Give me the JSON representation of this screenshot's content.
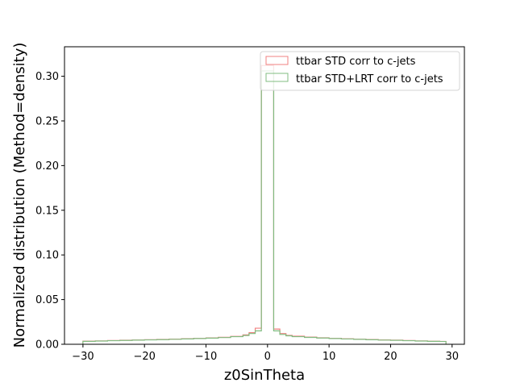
{
  "chart_data": {
    "type": "step-histogram",
    "title": "",
    "xlabel": "z0SinTheta",
    "ylabel": "Normalized distribution (Method=density)",
    "xlim": [
      -33.0,
      32.0
    ],
    "ylim": [
      0.0,
      0.333
    ],
    "xticks": [
      -30,
      -20,
      -10,
      0,
      10,
      20,
      30
    ],
    "yticks": [
      0.0,
      0.05,
      0.1,
      0.15,
      0.2,
      0.25,
      0.3
    ],
    "xtick_labels": [
      "−30",
      "−20",
      "−10",
      "0",
      "10",
      "20",
      "30"
    ],
    "ytick_labels": [
      "0.00",
      "0.05",
      "0.10",
      "0.15",
      "0.20",
      "0.25",
      "0.30"
    ],
    "bin_edges": [
      -30,
      -28,
      -26,
      -24,
      -22,
      -20,
      -18,
      -16,
      -14,
      -12,
      -10,
      -8,
      -6,
      -4,
      -3,
      -2,
      -1,
      0,
      1,
      2,
      3,
      4,
      6,
      8,
      10,
      12,
      14,
      16,
      18,
      20,
      22,
      24,
      26,
      28,
      29
    ],
    "legend": {
      "location": "upper-right"
    },
    "series": [
      {
        "name": "ttbar STD corr to c-jets",
        "color": "#f08080",
        "values": [
          0.0035,
          0.0038,
          0.0042,
          0.0045,
          0.0048,
          0.0051,
          0.0054,
          0.0058,
          0.0062,
          0.0066,
          0.0071,
          0.0078,
          0.0088,
          0.0105,
          0.013,
          0.018,
          0.312,
          0.312,
          0.017,
          0.012,
          0.01,
          0.009,
          0.008,
          0.0072,
          0.0066,
          0.0061,
          0.0057,
          0.0053,
          0.0049,
          0.0046,
          0.0042,
          0.0038,
          0.0034,
          0.0032
        ]
      },
      {
        "name": "ttbar STD+LRT corr to c-jets",
        "color": "#80bc80",
        "values": [
          0.0033,
          0.0036,
          0.004,
          0.0043,
          0.0046,
          0.0049,
          0.0052,
          0.0056,
          0.006,
          0.0064,
          0.0069,
          0.0075,
          0.0085,
          0.0098,
          0.012,
          0.015,
          0.306,
          0.306,
          0.015,
          0.011,
          0.0095,
          0.0085,
          0.0077,
          0.007,
          0.0064,
          0.0059,
          0.0055,
          0.0051,
          0.0047,
          0.0044,
          0.004,
          0.0036,
          0.0033,
          0.0031
        ]
      }
    ]
  }
}
